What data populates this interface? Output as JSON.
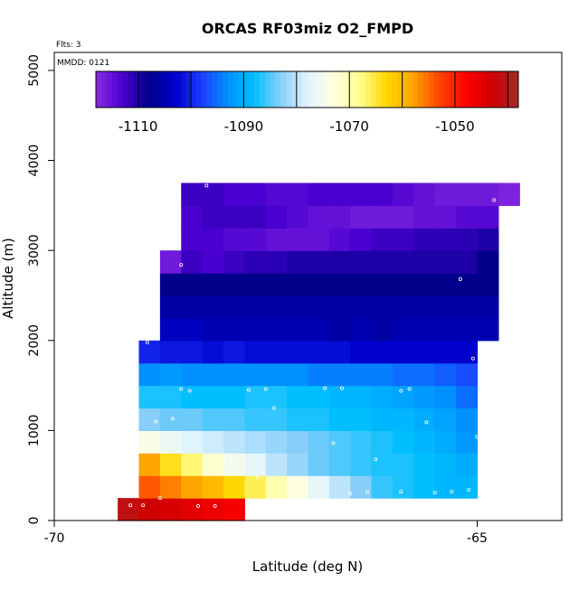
{
  "chart_data": {
    "type": "heatmap",
    "title": "ORCAS RF03miz O2_FMPD",
    "annotations": {
      "flights": "Flts: 3",
      "date": "MMDD: 0121"
    },
    "xlabel": "Latitude (deg N)",
    "ylabel": "Altitude (m)",
    "xlim": [
      -70,
      -64
    ],
    "ylim": [
      0,
      5200
    ],
    "x_ticks": [
      -70,
      -65
    ],
    "x_tick_labels": [
      "-70",
      "-65"
    ],
    "y_ticks": [
      0,
      1000,
      2000,
      3000,
      4000,
      5000
    ],
    "y_tick_labels": [
      "0",
      "1000",
      "2000",
      "3000",
      "4000",
      "5000"
    ],
    "colorbar": {
      "range": [
        -1118,
        -1038
      ],
      "ticks": [
        -1110,
        -1090,
        -1070,
        -1050
      ],
      "tick_labels": [
        "-1110",
        "-1090",
        "-1070",
        "-1050"
      ],
      "colors": [
        "#8a2be2",
        "#4a00d0",
        "#00008b",
        "#0000cd",
        "#1e3cff",
        "#0090ff",
        "#00bfff",
        "#87cefa",
        "#e0f4ff",
        "#ffffe0",
        "#ffff90",
        "#ffd700",
        "#ffa500",
        "#ff4500",
        "#ff0000",
        "#d00000",
        "#a52a2a"
      ]
    },
    "cell_width_deg": 0.25,
    "cell_height_m": 250,
    "rows": [
      {
        "alt": 125,
        "x0": -69.25,
        "values": [
          -1041,
          -1043,
          -1044,
          -1045,
          -1046,
          -1047
        ]
      },
      {
        "alt": 375,
        "x0": -69.0,
        "values": [
          -1054,
          -1056,
          -1058,
          -1060,
          -1063,
          -1066,
          -1070,
          -1073,
          -1077,
          -1080,
          -1083,
          -1086,
          -1087,
          -1088,
          -1089,
          -1089
        ]
      },
      {
        "alt": 625,
        "x0": -69.0,
        "values": [
          -1058,
          -1064,
          -1067,
          -1072,
          -1075,
          -1077,
          -1080,
          -1082,
          -1084,
          -1085,
          -1086,
          -1087,
          -1087,
          -1088,
          -1089,
          -1090
        ]
      },
      {
        "alt": 875,
        "x0": -69.0,
        "values": [
          -1074,
          -1076,
          -1078,
          -1079,
          -1080,
          -1081,
          -1082,
          -1083,
          -1084,
          -1085,
          -1086,
          -1087,
          -1088,
          -1089,
          -1090,
          -1092
        ]
      },
      {
        "alt": 1125,
        "x0": -69.0,
        "values": [
          -1083,
          -1084,
          -1084,
          -1085,
          -1085,
          -1086,
          -1086,
          -1087,
          -1087,
          -1088,
          -1088,
          -1089,
          -1089,
          -1090,
          -1091,
          -1093
        ]
      },
      {
        "alt": 1375,
        "x0": -69.0,
        "values": [
          -1087,
          -1087,
          -1088,
          -1088,
          -1088,
          -1087,
          -1087,
          -1088,
          -1088,
          -1089,
          -1089,
          -1090,
          -1091,
          -1092,
          -1093,
          -1095
        ]
      },
      {
        "alt": 1625,
        "x0": -69.0,
        "values": [
          -1093,
          -1092,
          -1093,
          -1093,
          -1093,
          -1093,
          -1093,
          -1093,
          -1094,
          -1094,
          -1094,
          -1094,
          -1095,
          -1095,
          -1096,
          -1097
        ]
      },
      {
        "alt": 1875,
        "x0": -69.0,
        "values": [
          -1100,
          -1101,
          -1101,
          -1102,
          -1101,
          -1102,
          -1102,
          -1102,
          -1102,
          -1102,
          -1103,
          -1103,
          -1103,
          -1103,
          -1103,
          -1103
        ]
      },
      {
        "alt": 2125,
        "x0": -68.75,
        "values": [
          -1104,
          -1104,
          -1105,
          -1105,
          -1105,
          -1105,
          -1105,
          -1105,
          -1106,
          -1105,
          -1106,
          -1105,
          -1105,
          -1105,
          -1105,
          -1105
        ]
      },
      {
        "alt": 2375,
        "x0": -68.75,
        "values": [
          -1106,
          -1106,
          -1106,
          -1106,
          -1106,
          -1106,
          -1106,
          -1106,
          -1106,
          -1106,
          -1106,
          -1106,
          -1106,
          -1106,
          -1106,
          -1106
        ]
      },
      {
        "alt": 2625,
        "x0": -68.75,
        "values": [
          -1108,
          -1108,
          -1108,
          -1108,
          -1108,
          -1108,
          -1108,
          -1108,
          -1108,
          -1108,
          -1108,
          -1108,
          -1108,
          -1108,
          -1108,
          -1108
        ]
      },
      {
        "alt": 2875,
        "x0": -68.75,
        "values": [
          -1116,
          -1112,
          -1113,
          -1112,
          -1111,
          -1111,
          -1110,
          -1110,
          -1110,
          -1110,
          -1110,
          -1110,
          -1110,
          -1110,
          -1110,
          -1108
        ]
      },
      {
        "alt": 3125,
        "x0": -68.5,
        "values": [
          -1113,
          -1113,
          -1114,
          -1114,
          -1115,
          -1115,
          -1115,
          -1114,
          -1113,
          -1112,
          -1112,
          -1111,
          -1111,
          -1111,
          -1110
        ]
      },
      {
        "alt": 3375,
        "x0": -68.5,
        "values": [
          -1113,
          -1112,
          -1112,
          -1112,
          -1113,
          -1114,
          -1115,
          -1115,
          -1116,
          -1116,
          -1116,
          -1115,
          -1115,
          -1114,
          -1114
        ]
      },
      {
        "alt": 3625,
        "x0": -68.5,
        "values": [
          -1112,
          -1112,
          -1113,
          -1113,
          -1114,
          -1114,
          -1113,
          -1113,
          -1113,
          -1113,
          -1114,
          -1115,
          -1116,
          -1116,
          -1116,
          -1117
        ]
      }
    ],
    "points": [
      [
        -69.1,
        170
      ],
      [
        -68.95,
        170
      ],
      [
        -68.75,
        250
      ],
      [
        -68.3,
        160
      ],
      [
        -68.1,
        160
      ],
      [
        -68.8,
        1100
      ],
      [
        -68.6,
        1130
      ],
      [
        -68.0,
        700
      ],
      [
        -67.9,
        650
      ],
      [
        -67.6,
        480
      ],
      [
        -66.7,
        860
      ],
      [
        -66.2,
        680
      ],
      [
        -66.5,
        300
      ],
      [
        -66.3,
        320
      ],
      [
        -65.9,
        320
      ],
      [
        -65.5,
        310
      ],
      [
        -65.3,
        320
      ],
      [
        -65.1,
        340
      ],
      [
        -65.0,
        930
      ],
      [
        -65.6,
        1090
      ],
      [
        -65.8,
        1460
      ],
      [
        -65.9,
        1440
      ],
      [
        -66.6,
        1470
      ],
      [
        -66.8,
        1470
      ],
      [
        -67.4,
        1250
      ],
      [
        -67.5,
        1460
      ],
      [
        -67.7,
        1450
      ],
      [
        -68.5,
        1460
      ],
      [
        -68.4,
        1440
      ],
      [
        -68.9,
        1980
      ],
      [
        -68.5,
        2840
      ],
      [
        -68.2,
        3720
      ],
      [
        -64.8,
        3560
      ],
      [
        -65.2,
        2680
      ],
      [
        -65.05,
        1800
      ]
    ]
  }
}
